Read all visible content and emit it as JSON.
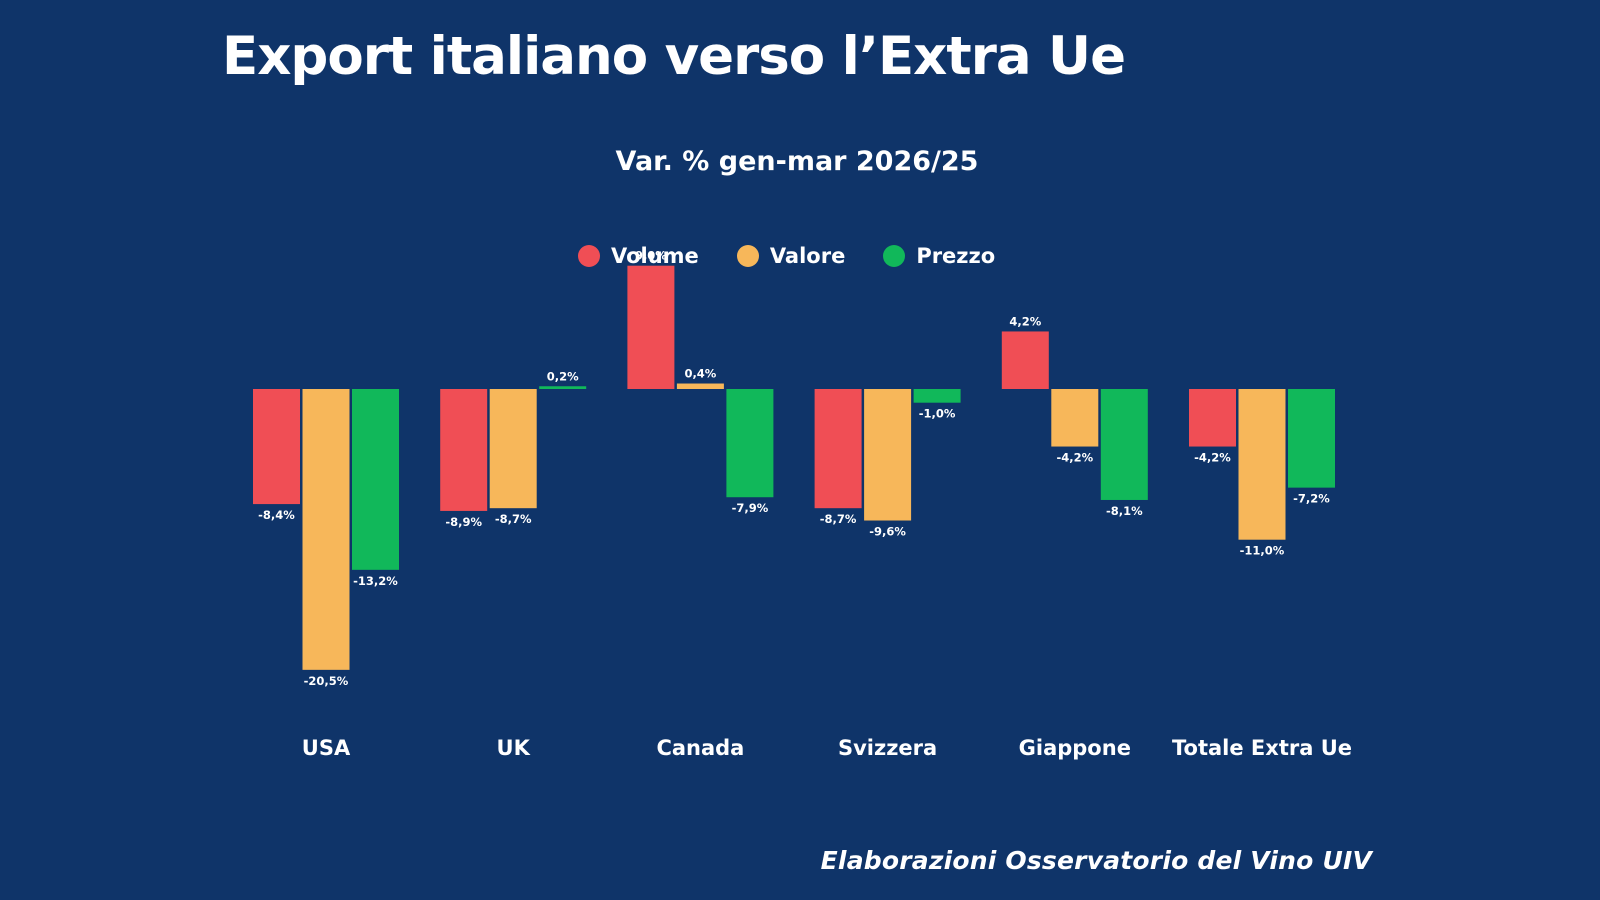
{
  "title": "Export italiano verso l’Extra Ue",
  "subtitle": "Var. % gen-mar 2026/25",
  "footer": "Elaborazioni Osservatorio del Vino UIV",
  "legend": [
    {
      "label": "Volume",
      "color": "#f04e55"
    },
    {
      "label": "Valore",
      "color": "#f7b75a"
    },
    {
      "label": "Prezzo",
      "color": "#11b85a"
    }
  ],
  "chart_data": {
    "type": "bar",
    "title": "Var. % gen-mar 2026/25",
    "categories": [
      "USA",
      "UK",
      "Canada",
      "Svizzera",
      "Giappone",
      "Totale Extra Ue"
    ],
    "series": [
      {
        "name": "Volume",
        "color": "#f04e55",
        "values": [
          -8.4,
          -8.9,
          9.0,
          -8.7,
          4.2,
          -4.2
        ],
        "labels": [
          "-8,4%",
          "-8,9%",
          "9,0%",
          "-8,7%",
          "4,2%",
          "-4,2%"
        ]
      },
      {
        "name": "Valore",
        "color": "#f7b75a",
        "values": [
          -20.5,
          -8.7,
          0.4,
          -9.6,
          -4.2,
          -11.0
        ],
        "labels": [
          "-20,5%",
          "-8,7%",
          "0,4%",
          "-9,6%",
          "-4,2%",
          "-11,0%"
        ]
      },
      {
        "name": "Prezzo",
        "color": "#11b85a",
        "values": [
          -13.2,
          0.2,
          -7.9,
          -1.0,
          -8.1,
          -7.2
        ],
        "labels": [
          "-13,2%",
          "0,2%",
          "-7,9%",
          "-1,0%",
          "-8,1%",
          "-7,2%"
        ]
      }
    ],
    "grid": false,
    "legend_position": "top"
  }
}
